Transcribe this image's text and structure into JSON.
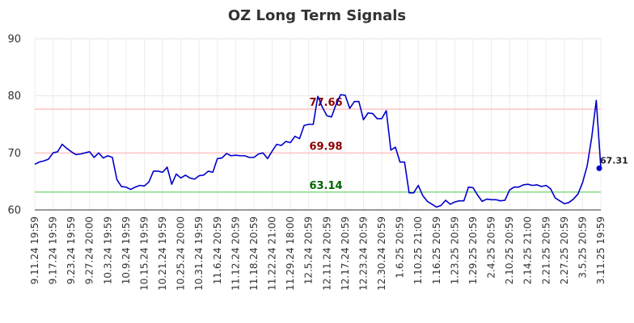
{
  "chart_data": {
    "type": "line",
    "title": "OZ Long Term Signals",
    "xlabel": "",
    "ylabel": "",
    "ylim": [
      60,
      90
    ],
    "yticks": [
      60,
      70,
      80,
      90
    ],
    "grid": true,
    "legend": "none",
    "x_tick_labels": [
      "9.11.24 19:59",
      "9.17.24 19:59",
      "9.23.24 19:59",
      "9.27.24 20:00",
      "10.3.24 19:59",
      "10.9.24 19:59",
      "10.15.24 19:59",
      "10.21.24 19:59",
      "10.25.24 20:00",
      "10.31.24 19:59",
      "11.6.24 20:59",
      "11.12.24 20:59",
      "11.18.24 20:59",
      "11.22.24 21:00",
      "11.29.24 18:00",
      "12.5.24 20:59",
      "12.11.24 20:59",
      "12.17.24 20:59",
      "12.23.24 20:59",
      "12.30.24 20:59",
      "1.6.25 20:59",
      "1.10.25 21:00",
      "1.16.25 20:59",
      "1.23.25 20:59",
      "1.29.25 20:59",
      "2.4.25 20:59",
      "2.10.25 20:59",
      "2.14.25 21:00",
      "2.21.25 20:59",
      "2.27.25 20:59",
      "3.5.25 20:59",
      "3.11.25 19:59"
    ],
    "series": [
      {
        "name": "",
        "color": "#0000cc",
        "values": [
          68.0,
          68.4,
          68.6,
          68.9,
          70.0,
          70.2,
          71.5,
          70.8,
          70.2,
          69.7,
          69.8,
          70.0,
          70.2,
          69.2,
          70.0,
          69.1,
          69.5,
          69.2,
          65.3,
          64.1,
          64.0,
          63.6,
          64.0,
          64.3,
          64.2,
          64.9,
          66.8,
          66.8,
          66.6,
          67.5,
          64.5,
          66.3,
          65.6,
          66.1,
          65.6,
          65.4,
          66.0,
          66.1,
          66.8,
          66.6,
          69.0,
          69.1,
          69.9,
          69.5,
          69.6,
          69.5,
          69.5,
          69.2,
          69.2,
          69.8,
          70.0,
          69.0,
          70.3,
          71.5,
          71.3,
          72.0,
          71.8,
          72.9,
          72.5,
          74.8,
          75.0,
          75.0,
          79.9,
          78.0,
          76.5,
          76.3,
          78.5,
          80.2,
          80.1,
          77.8,
          79.0,
          79.0,
          75.8,
          77.0,
          76.9,
          76.0,
          76.0,
          77.4,
          70.5,
          71.0,
          68.4,
          68.4,
          63.0,
          63.0,
          64.3,
          62.5,
          61.5,
          61.0,
          60.5,
          60.8,
          61.7,
          61.0,
          61.4,
          61.6,
          61.6,
          64.0,
          63.9,
          62.6,
          61.5,
          61.9,
          61.8,
          61.8,
          61.6,
          61.7,
          63.5,
          64.0,
          64.0,
          64.4,
          64.5,
          64.3,
          64.4,
          64.1,
          64.3,
          63.7,
          62.1,
          61.6,
          61.1,
          61.3,
          61.9,
          62.8,
          64.8,
          67.7,
          72.7,
          79.2,
          67.31
        ]
      }
    ],
    "last_value": 67.31,
    "last_value_label": "67.31",
    "reference_lines": [
      {
        "value": 77.66,
        "label": "77.66",
        "line_color": "#ffc8c8",
        "label_color": "#8b0000"
      },
      {
        "value": 69.98,
        "label": "69.98",
        "line_color": "#ffc8c8",
        "label_color": "#8b0000"
      },
      {
        "value": 63.14,
        "label": "63.14",
        "line_color": "#90dd90",
        "label_color": "#006400"
      }
    ]
  }
}
